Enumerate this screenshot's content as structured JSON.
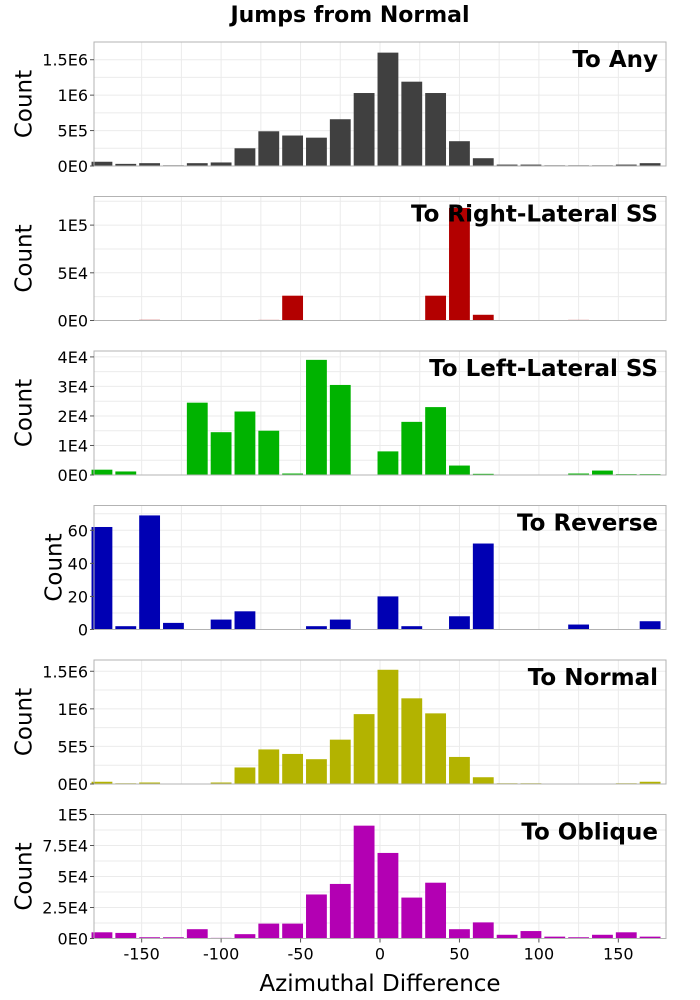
{
  "figure": {
    "title": "Jumps from Normal",
    "xlabel": "Azimuthal Difference"
  },
  "chart_data": [
    {
      "type": "bar",
      "panel_label": "To Any",
      "ylabel": "Count",
      "color": "#404040",
      "xlim": [
        -180,
        180
      ],
      "ylim": [
        0,
        1750000
      ],
      "yticks": [
        0,
        500000,
        1000000,
        1500000
      ],
      "ytick_labels": [
        "0E0",
        "5E5",
        "1E6",
        "1.5E6"
      ],
      "x": [
        -175,
        -160,
        -145,
        -130,
        -115,
        -100,
        -85,
        -70,
        -55,
        -40,
        -25,
        -10,
        5,
        20,
        35,
        50,
        65,
        80,
        95,
        110,
        125,
        140,
        155,
        170
      ],
      "values": [
        60000,
        30000,
        40000,
        10000,
        40000,
        50000,
        250000,
        490000,
        430000,
        400000,
        660000,
        1030000,
        1600000,
        1190000,
        1030000,
        350000,
        110000,
        20000,
        20000,
        10000,
        10000,
        10000,
        20000,
        40000
      ]
    },
    {
      "type": "bar",
      "panel_label": "To Right-Lateral SS",
      "ylabel": "Count",
      "color": "#b30000",
      "xlim": [
        -180,
        180
      ],
      "ylim": [
        0,
        130000
      ],
      "yticks": [
        0,
        50000,
        100000
      ],
      "ytick_labels": [
        "0E0",
        "5E4",
        "1E5"
      ],
      "x": [
        -175,
        -160,
        -145,
        -130,
        -115,
        -100,
        -85,
        -70,
        -55,
        -40,
        -25,
        -10,
        5,
        20,
        35,
        50,
        65,
        80,
        95,
        110,
        125,
        140,
        155,
        170
      ],
      "values": [
        0,
        0,
        700,
        0,
        0,
        0,
        0,
        600,
        26000,
        0,
        0,
        0,
        0,
        0,
        26000,
        118000,
        6000,
        0,
        0,
        0,
        300,
        0,
        0,
        0
      ]
    },
    {
      "type": "bar",
      "panel_label": "To Left-Lateral SS",
      "ylabel": "Count",
      "color": "#00b300",
      "xlim": [
        -180,
        180
      ],
      "ylim": [
        0,
        42000
      ],
      "yticks": [
        0,
        10000,
        20000,
        30000,
        40000
      ],
      "ytick_labels": [
        "0E0",
        "1E4",
        "2E4",
        "3E4",
        "4E4"
      ],
      "x": [
        -175,
        -160,
        -145,
        -130,
        -115,
        -100,
        -85,
        -70,
        -55,
        -40,
        -25,
        -10,
        5,
        20,
        35,
        50,
        65,
        80,
        95,
        110,
        125,
        140,
        155,
        170
      ],
      "values": [
        1800,
        1200,
        0,
        0,
        24500,
        14500,
        21500,
        15000,
        500,
        39000,
        30500,
        0,
        8000,
        18000,
        23000,
        3200,
        400,
        0,
        0,
        0,
        500,
        1500,
        300,
        300
      ]
    },
    {
      "type": "bar",
      "panel_label": "To Reverse",
      "ylabel": "Count",
      "color": "#0000b3",
      "xlim": [
        -180,
        180
      ],
      "ylim": [
        0,
        75
      ],
      "yticks": [
        0,
        20,
        40,
        60
      ],
      "ytick_labels": [
        "0",
        "20",
        "40",
        "60"
      ],
      "x": [
        -175,
        -160,
        -145,
        -130,
        -115,
        -100,
        -85,
        -70,
        -55,
        -40,
        -25,
        -10,
        5,
        20,
        35,
        50,
        65,
        80,
        95,
        110,
        125,
        140,
        155,
        170
      ],
      "values": [
        62,
        2,
        69,
        4,
        0,
        6,
        11,
        0,
        0,
        2,
        6,
        0,
        20,
        2,
        0,
        8,
        52,
        0,
        0,
        0,
        3,
        0,
        0,
        5
      ]
    },
    {
      "type": "bar",
      "panel_label": "To Normal",
      "ylabel": "Count",
      "color": "#b3b300",
      "xlim": [
        -180,
        180
      ],
      "ylim": [
        0,
        1650000
      ],
      "yticks": [
        0,
        500000,
        1000000,
        1500000
      ],
      "ytick_labels": [
        "0E0",
        "5E5",
        "1E6",
        "1.5E6"
      ],
      "x": [
        -175,
        -160,
        -145,
        -130,
        -115,
        -100,
        -85,
        -70,
        -55,
        -40,
        -25,
        -10,
        5,
        20,
        35,
        50,
        65,
        80,
        95,
        110,
        125,
        140,
        155,
        170
      ],
      "values": [
        30000,
        10000,
        20000,
        0,
        0,
        20000,
        220000,
        460000,
        400000,
        330000,
        590000,
        930000,
        1520000,
        1140000,
        940000,
        360000,
        90000,
        10000,
        10000,
        0,
        0,
        0,
        10000,
        30000
      ]
    },
    {
      "type": "bar",
      "panel_label": "To Oblique",
      "ylabel": "Count",
      "color": "#b300b3",
      "xlim": [
        -180,
        180
      ],
      "ylim": [
        0,
        100000
      ],
      "yticks": [
        0,
        25000,
        50000,
        75000,
        100000
      ],
      "ytick_labels": [
        "0E0",
        "2.5E4",
        "5E4",
        "7.5E4",
        "1E5"
      ],
      "xticks": [
        -150,
        -100,
        -50,
        0,
        50,
        100,
        150
      ],
      "x": [
        -175,
        -160,
        -145,
        -130,
        -115,
        -100,
        -85,
        -70,
        -55,
        -40,
        -25,
        -10,
        5,
        20,
        35,
        50,
        65,
        80,
        95,
        110,
        125,
        140,
        155,
        170
      ],
      "values": [
        5000,
        4500,
        1000,
        1000,
        7500,
        500,
        3500,
        12000,
        12000,
        35500,
        44000,
        91000,
        69000,
        33000,
        45000,
        7500,
        13000,
        3000,
        6000,
        1500,
        1000,
        3000,
        5000,
        1500
      ]
    }
  ]
}
